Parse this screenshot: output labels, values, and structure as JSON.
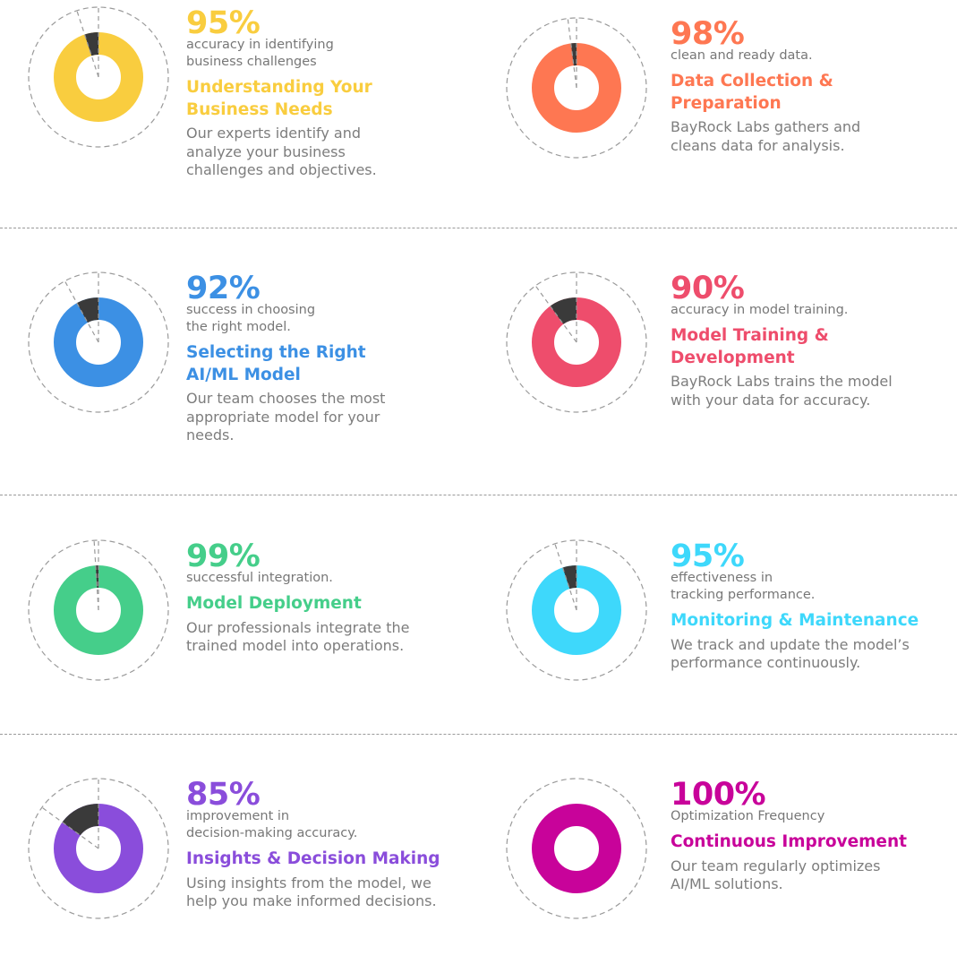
{
  "colors": {
    "accent_dark": "#3a3a3a",
    "guide_lines": "#9a9a9a",
    "muted_text": "#7d7d7d"
  },
  "steps": [
    {
      "percent": 95,
      "percent_label": "95%",
      "stat_label": "accuracy in identifying\nbusiness challenges",
      "title": "Understanding Your\nBusiness Needs",
      "description": "Our experts identify and\nanalyze your business\nchallenges and objectives.",
      "color": "#F9CD3F"
    },
    {
      "percent": 98,
      "percent_label": "98%",
      "stat_label": "clean and ready data.",
      "title": "Data Collection &\nPreparation",
      "description": "BayRock Labs gathers and\ncleans data for analysis.",
      "color": "#FE7752"
    },
    {
      "percent": 92,
      "percent_label": "92%",
      "stat_label": "success in choosing\nthe right model.",
      "title": "Selecting the Right\nAI/ML Model",
      "description": "Our team chooses the most\nappropriate model for your\nneeds.",
      "color": "#3C90E4"
    },
    {
      "percent": 90,
      "percent_label": "90%",
      "stat_label": "accuracy in model training.",
      "title": "Model Training &\nDevelopment",
      "description": "BayRock Labs trains the model\nwith your data for accuracy.",
      "color": "#EE4D6C"
    },
    {
      "percent": 99,
      "percent_label": "99%",
      "stat_label": "successful integration.",
      "title": "Model Deployment",
      "description": "Our professionals integrate the\ntrained model into operations.",
      "color": "#45CE8A"
    },
    {
      "percent": 95,
      "percent_label": "95%",
      "stat_label": "effectiveness in\ntracking performance.",
      "title": "Monitoring & Maintenance",
      "description": "We track and update the model’s\nperformance continuously.",
      "color": "#3ED8FB"
    },
    {
      "percent": 85,
      "percent_label": "85%",
      "stat_label": " improvement in\ndecision-making accuracy.",
      "title": "Insights & Decision Making",
      "description": "Using insights from the model, we\nhelp you make informed decisions.",
      "color": "#8A4DDB"
    },
    {
      "percent": 100,
      "percent_label": "100%",
      "stat_label": "Optimization Frequency",
      "title": "Continuous Improvement",
      "description": "Our team regularly optimizes\nAI/ML solutions.",
      "color": "#C8039A"
    }
  ]
}
